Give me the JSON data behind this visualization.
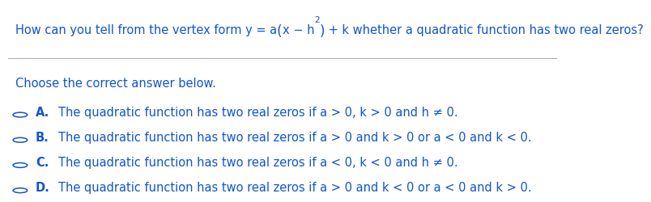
{
  "prompt": "Choose the correct answer below.",
  "options": [
    {
      "label": "A.",
      "text": "The quadratic function has two real zeros if a > 0, k > 0 and h ≠ 0."
    },
    {
      "label": "B.",
      "text": "The quadratic function has two real zeros if a > 0 and k > 0 or a < 0 and k < 0."
    },
    {
      "label": "C.",
      "text": "The quadratic function has two real zeros if a < 0, k < 0 and h ≠ 0."
    },
    {
      "label": "D.",
      "text": "The quadratic function has two real zeros if a > 0 and k < 0 or a < 0 and k > 0."
    }
  ],
  "title_color": "#1155CC",
  "text_color": "#1155CC",
  "background_color": "#ffffff",
  "circle_color": "#1155CC",
  "line_color": "#aaaaaa",
  "font_size_title": 10.5,
  "font_size_body": 10.5
}
